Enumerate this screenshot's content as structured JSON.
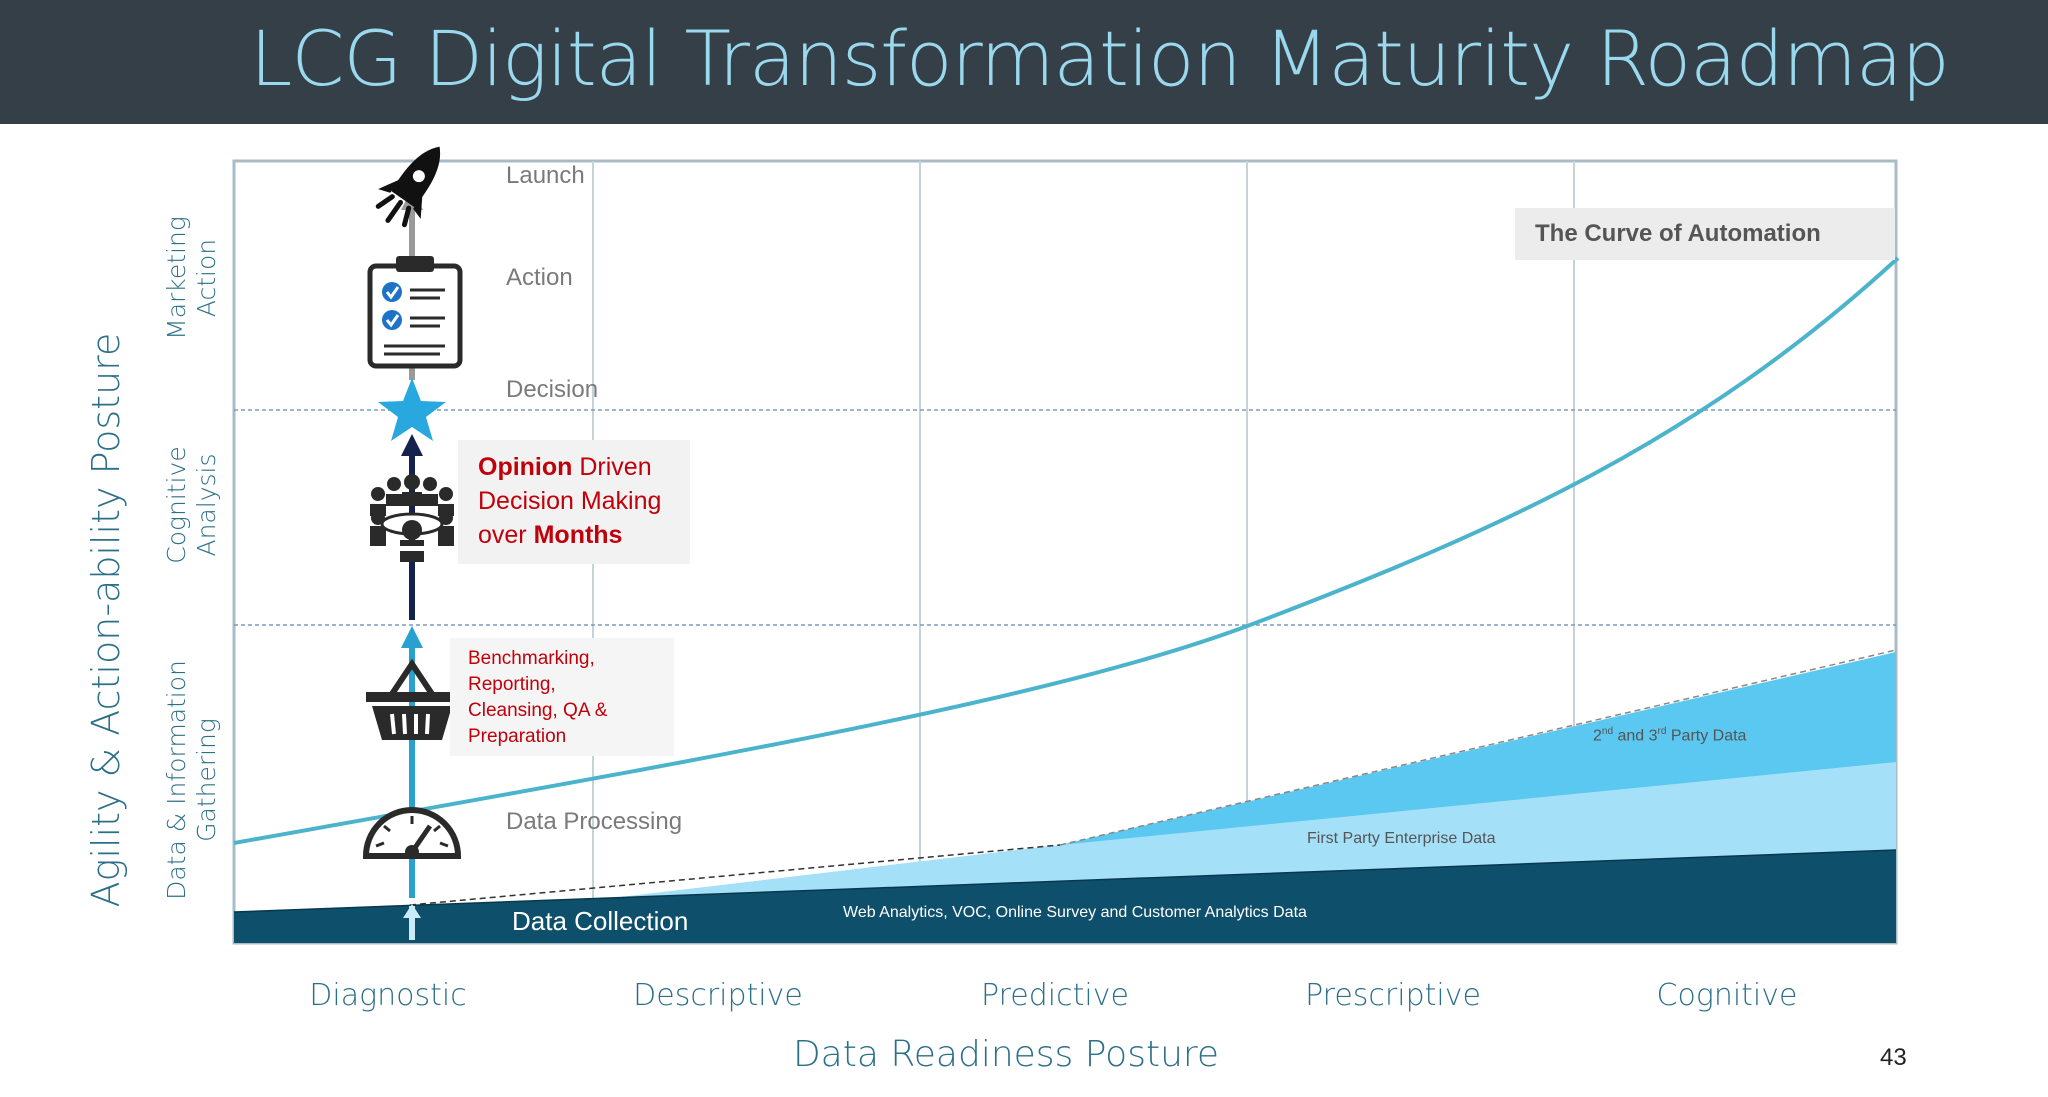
{
  "title": "LCG Digital Transformation Maturity Roadmap",
  "x_axis": {
    "label": "Data Readiness Posture",
    "categories": [
      "Diagnostic",
      "Descriptive",
      "Predictive",
      "Prescriptive",
      "Cognitive"
    ]
  },
  "y_axis": {
    "label": "Agility & Action-ability Posture",
    "bands": [
      {
        "line1": "Marketing",
        "line2": "Action"
      },
      {
        "line1": "Cognitive",
        "line2": "Analysis"
      },
      {
        "line1": "Data & Information",
        "line2": "Gathering"
      }
    ]
  },
  "stages": {
    "launch": "Launch",
    "action": "Action",
    "decision": "Decision",
    "data_processing": "Data Processing",
    "data_collection": "Data Collection"
  },
  "opinion_callout": {
    "opinion": "Opinion",
    "driven": " Driven",
    "line2": "Decision Making",
    "over": "over ",
    "months": "Months"
  },
  "bench_callout": [
    "Benchmarking,",
    "Reporting,",
    "Cleansing, QA &",
    "Preparation"
  ],
  "curve_title": "The Curve of Automation",
  "areas": {
    "web": "Web Analytics, VOC, Online Survey and Customer Analytics Data",
    "first_party": "First Party Enterprise Data",
    "third_party_pre": "2",
    "nd": "nd",
    "and3": " and 3",
    "rd": "rd",
    "third_party_post": " Party Data"
  },
  "page_number": "43",
  "icons": [
    "rocket-icon",
    "clipboard-checklist-icon",
    "star-icon",
    "meeting-people-icon",
    "basket-icon",
    "gauge-icon"
  ],
  "colors": {
    "header": "#343f48",
    "title": "#9ad8ee",
    "curve": "#4bb3cc",
    "dark_area": "#0e4f6b",
    "light_area": "#9fdef6",
    "mid_area": "#5ac8f0",
    "callout_red": "#c0000a",
    "star": "#29a8e0"
  }
}
